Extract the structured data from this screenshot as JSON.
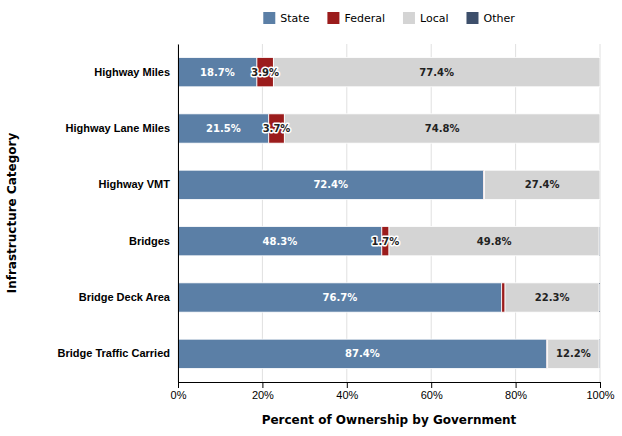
{
  "chart_data": {
    "type": "bar",
    "orientation": "horizontal",
    "stacked": true,
    "categories": [
      "Highway Miles",
      "Highway Lane Miles",
      "Highway VMT",
      "Bridges",
      "Bridge Deck Area",
      "Bridge Traffic Carried"
    ],
    "series": [
      {
        "name": "State",
        "color": "#5b7fa6",
        "values": [
          18.7,
          21.5,
          72.4,
          48.3,
          76.7,
          87.4
        ],
        "value_labels": [
          "18.7%",
          "21.5%",
          "72.4%",
          "48.3%",
          "76.7%",
          "87.4%"
        ]
      },
      {
        "name": "Federal",
        "color": "#9b1c1c",
        "values": [
          3.9,
          3.7,
          0.2,
          1.7,
          0.8,
          0.2
        ],
        "value_labels": [
          "3.9%",
          "3.7%",
          null,
          "1.7%",
          null,
          null
        ]
      },
      {
        "name": "Local",
        "color": "#d4d4d4",
        "values": [
          77.4,
          74.8,
          27.4,
          49.8,
          22.3,
          12.2
        ],
        "value_labels": [
          "77.4%",
          "74.8%",
          "27.4%",
          "49.8%",
          "22.3%",
          "12.2%"
        ]
      },
      {
        "name": "Other",
        "color": "#3d4f6b",
        "values": [
          0.0,
          0.0,
          0.0,
          0.2,
          0.2,
          0.2
        ],
        "value_labels": [
          null,
          null,
          null,
          null,
          null,
          null
        ]
      }
    ],
    "xlabel": "Percent of Ownership by Government",
    "ylabel": "Infrastructure Category",
    "xlim": [
      0,
      100
    ],
    "xticks": [
      {
        "value": 0,
        "label": "0%"
      },
      {
        "value": 20,
        "label": "20%"
      },
      {
        "value": 40,
        "label": "40%"
      },
      {
        "value": 60,
        "label": "60%"
      },
      {
        "value": 80,
        "label": "80%"
      },
      {
        "value": 100,
        "label": "100%"
      }
    ],
    "grid": true,
    "legend": "top",
    "data_labels": true
  }
}
